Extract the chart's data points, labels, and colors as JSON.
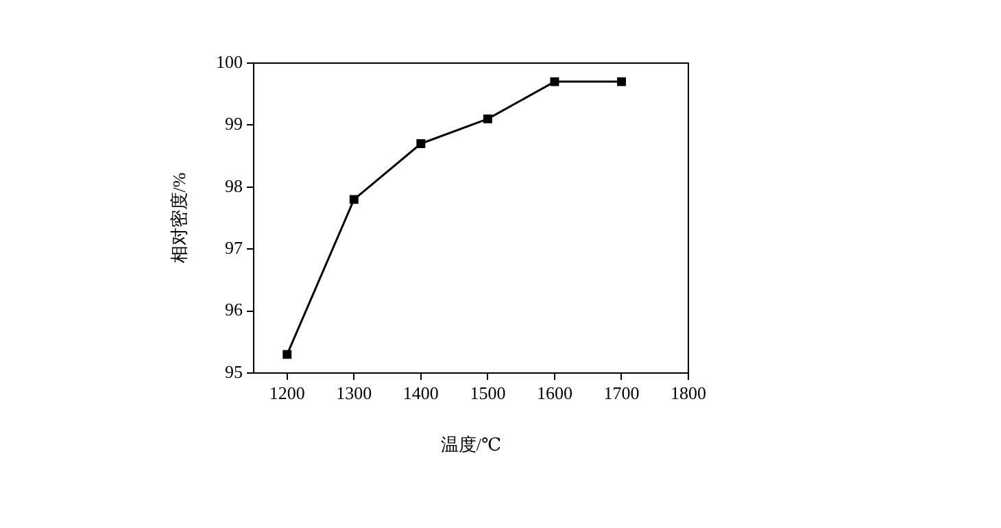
{
  "chart_data": {
    "type": "line",
    "xlabel": "温度/℃",
    "ylabel": "相对密度/%",
    "x": [
      1200,
      1300,
      1400,
      1500,
      1600,
      1700
    ],
    "series": [
      {
        "color": "#000000",
        "values": [
          95.3,
          97.8,
          98.7,
          99.1,
          99.7,
          99.7
        ]
      }
    ],
    "xlim": [
      1150,
      1800
    ],
    "xticks": [
      1200,
      1300,
      1400,
      1500,
      1600,
      1700,
      1800
    ],
    "ylim": [
      95,
      100
    ],
    "yticks": [
      95,
      96,
      97,
      98,
      99,
      100
    ],
    "marker": "square",
    "line_style": "solid",
    "legend": false,
    "grid": false
  }
}
